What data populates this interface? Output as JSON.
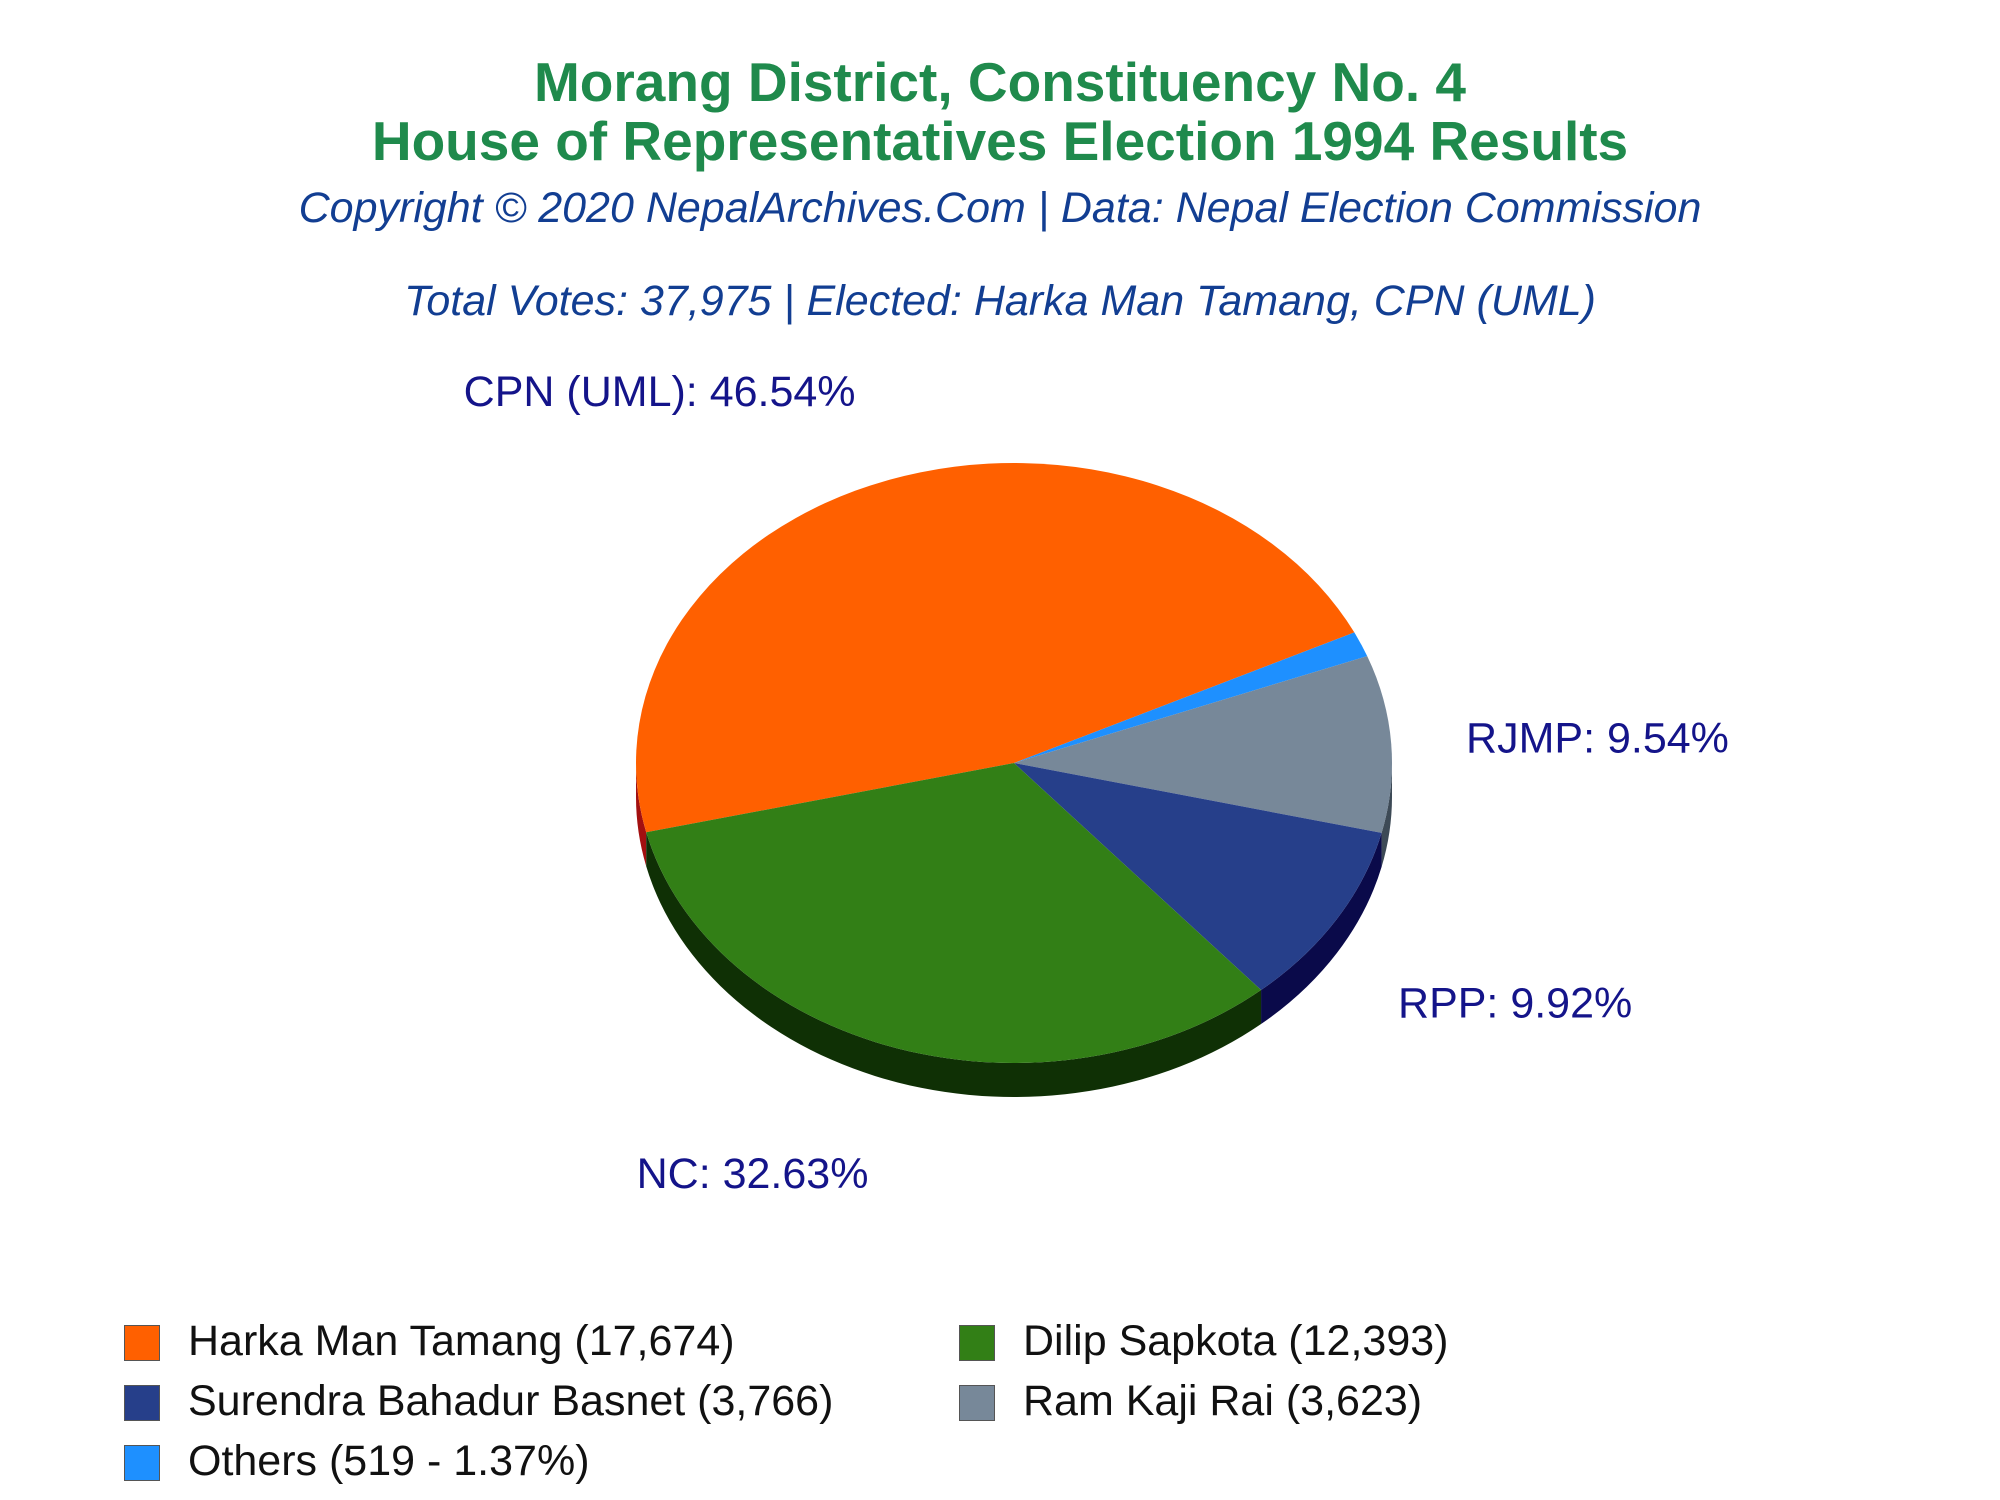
{
  "header": {
    "title_line1": "Morang District, Constituency No. 4",
    "title_line2": "House of Representatives Election 1994 Results",
    "copyright": "Copyright © 2020 NepalArchives.Com | Data: Nepal Election Commission",
    "summary": "Total Votes: 37,975 | Elected: Harka Man Tamang, CPN (UML)"
  },
  "colors": {
    "title": "#1f8a4c",
    "subtitle": "#123e92",
    "label": "#14148a"
  },
  "chart_data": {
    "type": "pie",
    "style": "3d",
    "slices": [
      {
        "label": "CPN (UML)",
        "value": 46.54,
        "label_text": "CPN (UML): 46.54%",
        "color": "#ff6000",
        "side_color": "#a31010"
      },
      {
        "label": "Others",
        "value": 1.37,
        "label_text": "",
        "color": "#1e90ff",
        "side_color": "#0d4a8a"
      },
      {
        "label": "RJMP",
        "value": 9.54,
        "label_text": "RJMP: 9.54%",
        "color": "#778899",
        "side_color": "#3d4a56"
      },
      {
        "label": "RPP",
        "value": 9.92,
        "label_text": "RPP: 9.92%",
        "color": "#263f8a",
        "side_color": "#0a0a4a"
      },
      {
        "label": "NC",
        "value": 32.63,
        "label_text": "NC: 32.63%",
        "color": "#327f16",
        "side_color": "#0f3005"
      }
    ]
  },
  "legend": [
    {
      "text": "Harka Man Tamang (17,674)",
      "color": "#ff6000"
    },
    {
      "text": "Dilip Sapkota (12,393)",
      "color": "#327f16"
    },
    {
      "text": "Surendra Bahadur Basnet (3,766)",
      "color": "#263f8a"
    },
    {
      "text": "Ram Kaji Rai (3,623)",
      "color": "#778899"
    },
    {
      "text": "Others (519 - 1.37%)",
      "color": "#1e90ff"
    }
  ]
}
